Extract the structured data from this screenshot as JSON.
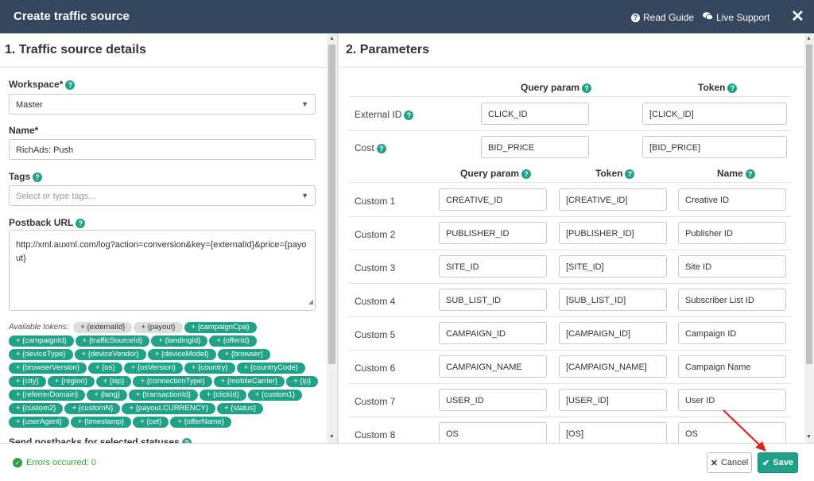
{
  "header": {
    "title": "Create traffic source",
    "read_guide": "Read Guide",
    "live_support": "Live Support",
    "close": "✕"
  },
  "left": {
    "section_title": "1. Traffic source details",
    "workspace_label": "Workspace*",
    "workspace_value": "Master",
    "name_label": "Name*",
    "name_value": "RichAds: Push",
    "tags_label": "Tags",
    "tags_placeholder": "Select or type tags...",
    "postback_label": "Postback URL",
    "postback_value": "http://xml.auxml.com/log?action=conversion&key={externalId}&price={payout}",
    "tokens_label": "Available tokens:",
    "tokens_grey": [
      "+ {externalId}",
      "+ {payout}"
    ],
    "tokens": [
      "+ {campaignCpa}",
      "+ {campaignId}",
      "+ {trafficSourceId}",
      "+ {landingId}",
      "+ {offerId}",
      "+ {deviceType}",
      "+ {deviceVendor}",
      "+ {deviceModel}",
      "+ {browser}",
      "+ {browserVersion}",
      "+ {os}",
      "+ {osVersion}",
      "+ {country}",
      "+ {countryCode}",
      "+ {city}",
      "+ {region}",
      "+ {isp}",
      "+ {connectionType}",
      "+ {mobileCarrier}",
      "+ {ip}",
      "+ {referrerDomain}",
      "+ {lang}",
      "+ {transactionId}",
      "+ {clickId}",
      "+ {custom1}",
      "+ {custom2}",
      "+ {customN}",
      "+ {payout.CURRENCY}",
      "+ {status}",
      "+ {userAgent}",
      "+ {timestamp}",
      "+ {cet}",
      "+ {offerName}"
    ],
    "send_postbacks_label": "Send postbacks for selected statuses"
  },
  "right": {
    "section_title": "2. Parameters",
    "top_headers": {
      "query": "Query param",
      "token": "Token"
    },
    "top_rows": [
      {
        "label": "External ID",
        "query": "CLICK_ID",
        "token": "[CLICK_ID]"
      },
      {
        "label": "Cost",
        "query": "BID_PRICE",
        "token": "[BID_PRICE]"
      }
    ],
    "custom_headers": {
      "query": "Query param",
      "token": "Token",
      "name": "Name"
    },
    "custom_rows": [
      {
        "label": "Custom 1",
        "query": "CREATIVE_ID",
        "token": "[CREATIVE_ID]",
        "name": "Creative ID"
      },
      {
        "label": "Custom 2",
        "query": "PUBLISHER_ID",
        "token": "[PUBLISHER_ID]",
        "name": "Publisher ID"
      },
      {
        "label": "Custom 3",
        "query": "SITE_ID",
        "token": "[SITE_ID]",
        "name": "Site ID"
      },
      {
        "label": "Custom 4",
        "query": "SUB_LIST_ID",
        "token": "[SUB_LIST_ID]",
        "name": "Subscriber List ID"
      },
      {
        "label": "Custom 5",
        "query": "CAMPAIGN_ID",
        "token": "[CAMPAIGN_ID]",
        "name": "Campaign ID"
      },
      {
        "label": "Custom 6",
        "query": "CAMPAIGN_NAME",
        "token": "[CAMPAIGN_NAME]",
        "name": "Campaign Name"
      },
      {
        "label": "Custom 7",
        "query": "USER_ID",
        "token": "[USER_ID]",
        "name": "User ID"
      },
      {
        "label": "Custom 8",
        "query": "OS",
        "token": "[OS]",
        "name": "OS"
      }
    ]
  },
  "footer": {
    "errors_text": "Errors occurred: 0",
    "cancel_label": "Cancel",
    "save_label": "Save"
  },
  "colors": {
    "header_bg": "#34475f",
    "accent": "#1fa287",
    "arrow": "#e02020"
  }
}
